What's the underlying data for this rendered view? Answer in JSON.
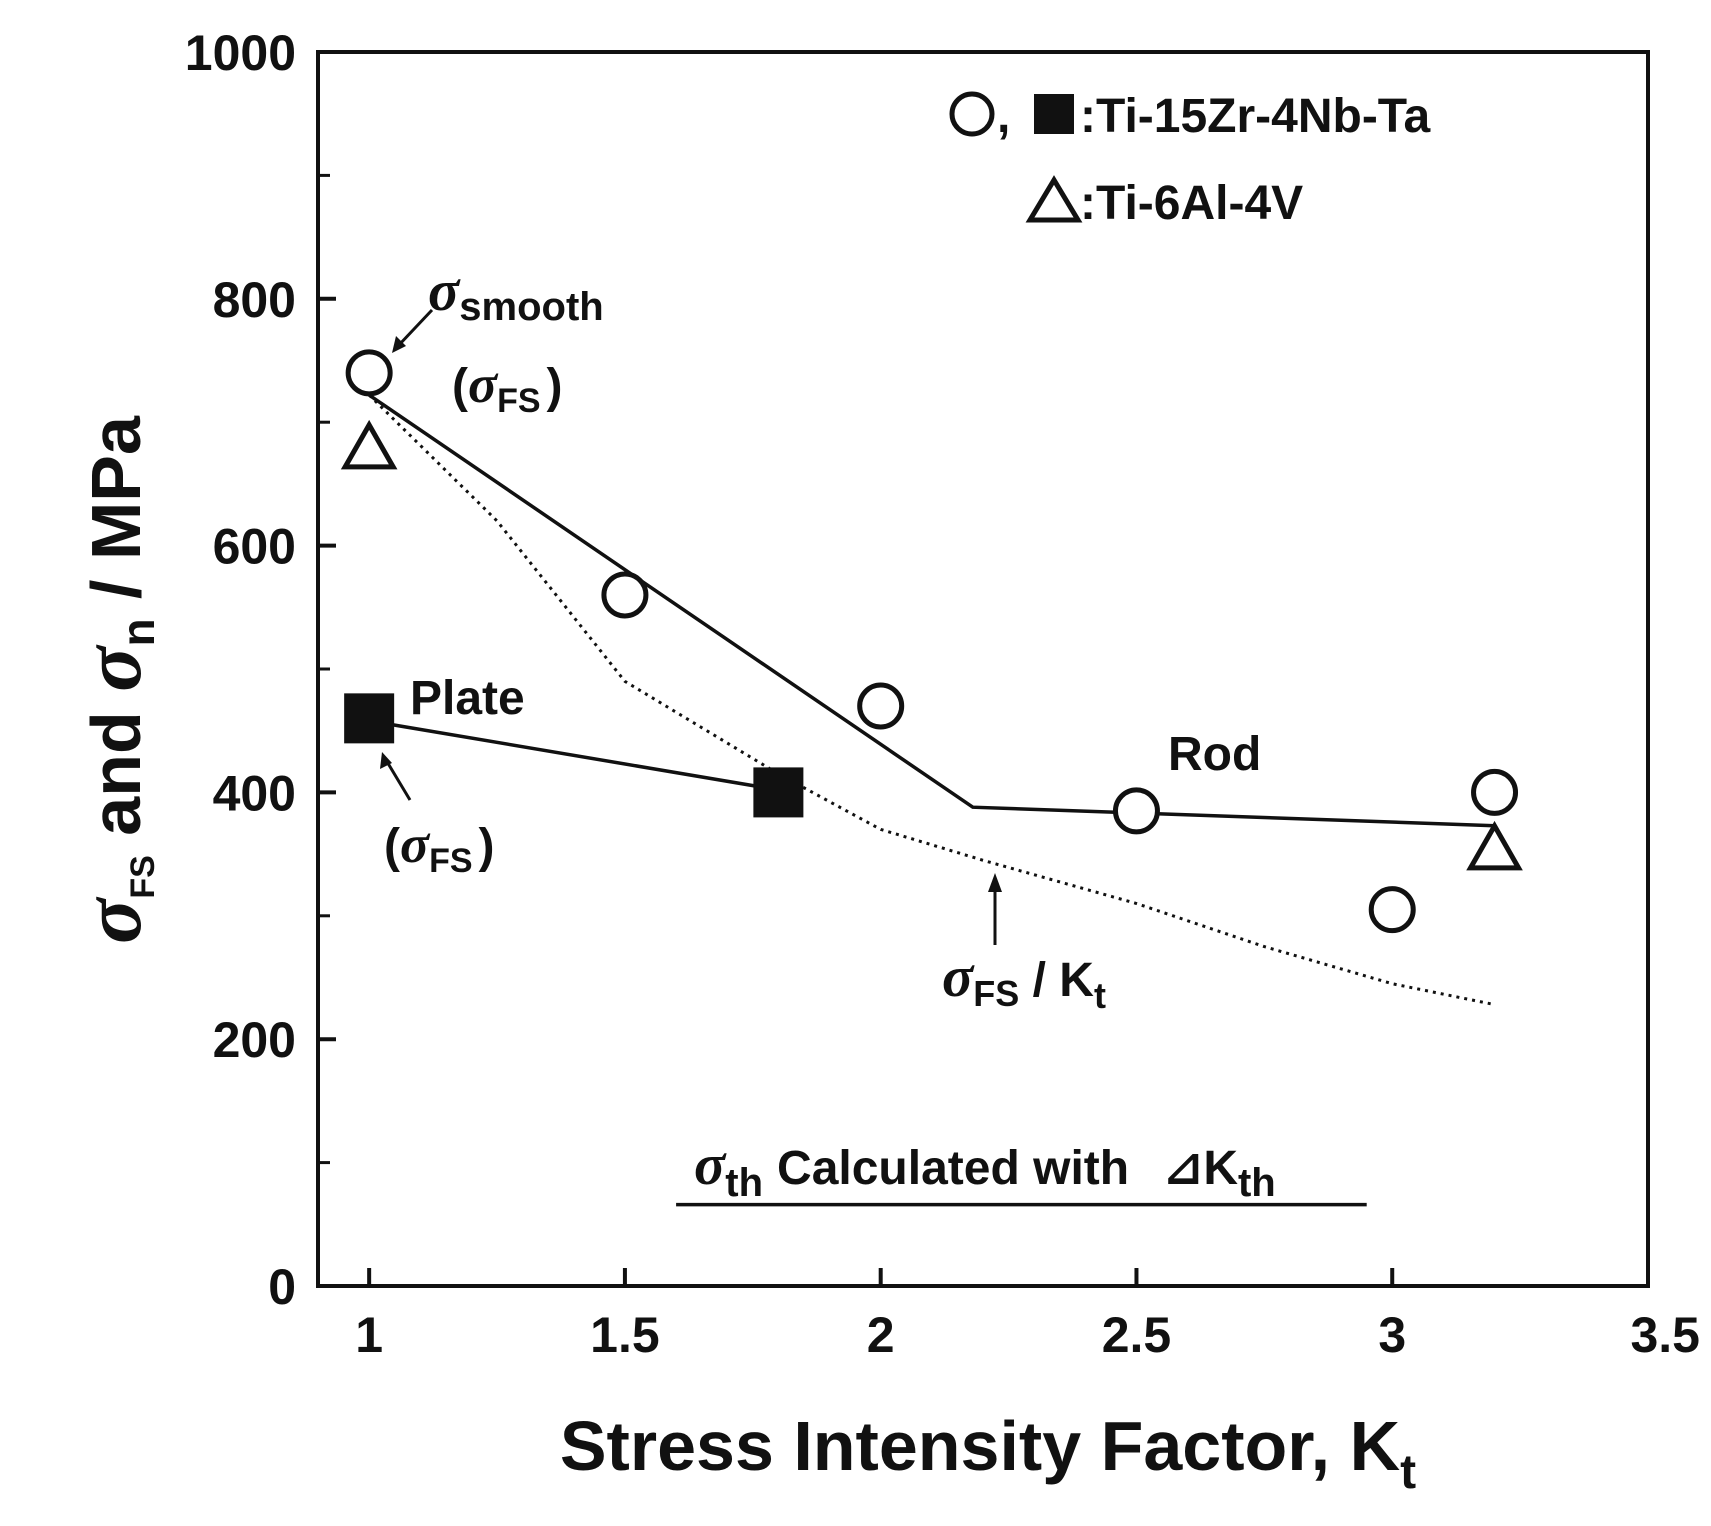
{
  "chart_data": {
    "type": "scatter",
    "xlabel": "Stress Intensity Factor, K",
    "xlabel_sub": "t",
    "ylabel_parts": {
      "sigma1": "σ",
      "sub1": "FS",
      "mid": " and ",
      "sigma2": "σ",
      "sub2": "n",
      "tail": " / MPa"
    },
    "xlim": [
      0.9,
      3.5
    ],
    "ylim": [
      0,
      1000
    ],
    "xticks": [
      1,
      1.5,
      2,
      2.5,
      3,
      3.5
    ],
    "xtick_labels": [
      "1",
      "1.5",
      "2",
      "2.5",
      "3",
      "3.5"
    ],
    "yticks": [
      0,
      200,
      400,
      600,
      800,
      1000
    ],
    "ytick_labels": [
      "0",
      "200",
      "400",
      "600",
      "800",
      "1000"
    ],
    "yminor": [
      100,
      300,
      500,
      700,
      900
    ],
    "series": [
      {
        "name": "Ti-15Zr-4Nb-Ta rod",
        "marker": "open-circle",
        "x": [
          1,
          1.5,
          2,
          2.5,
          3,
          3.2
        ],
        "y": [
          740,
          560,
          470,
          385,
          305,
          400
        ]
      },
      {
        "name": "Ti-15Zr-4Nb-Ta plate",
        "marker": "filled-square",
        "x": [
          1,
          1.8
        ],
        "y": [
          460,
          400
        ]
      },
      {
        "name": "Ti-6Al-4V",
        "marker": "open-triangle",
        "x": [
          1,
          3.2
        ],
        "y": [
          680,
          355
        ]
      }
    ],
    "lines": [
      {
        "name": "Rod trend",
        "style": "solid",
        "x": [
          1,
          2.18,
          3.2
        ],
        "y": [
          722,
          388,
          373
        ]
      },
      {
        "name": "Plate trend",
        "style": "solid",
        "x": [
          1,
          1.8
        ],
        "y": [
          458,
          402
        ]
      },
      {
        "name": "sigma_FS / Kt",
        "style": "dotted",
        "x": [
          1,
          1.25,
          1.5,
          1.8,
          2.0,
          2.2,
          2.5,
          2.75,
          3.0,
          3.2
        ],
        "y": [
          722,
          620,
          490,
          415,
          370,
          345,
          310,
          275,
          245,
          228
        ]
      },
      {
        "name": "sigma_th calculated with delta Kth",
        "style": "solid",
        "x": [
          1.6,
          2.95
        ],
        "y": [
          66,
          66
        ]
      }
    ],
    "legend": {
      "line1": ":Ti-15Zr-4Nb-Ta",
      "line2": ":Ti-6Al-4V",
      "sep": ","
    },
    "annotations": {
      "sigma": "σ",
      "smooth": "smooth",
      "fs": "FS",
      "paren_open": "(",
      "paren_close": ")",
      "plate": "Plate",
      "rod": "Rod",
      "kt_ratio_mid": " / K",
      "kt_sub": "t",
      "th": "th",
      "calc_text": "Calculated with",
      "delta_symbol": "⊿",
      "k": "K"
    },
    "colors": {
      "ink": "#111111",
      "background": "#ffffff"
    }
  }
}
